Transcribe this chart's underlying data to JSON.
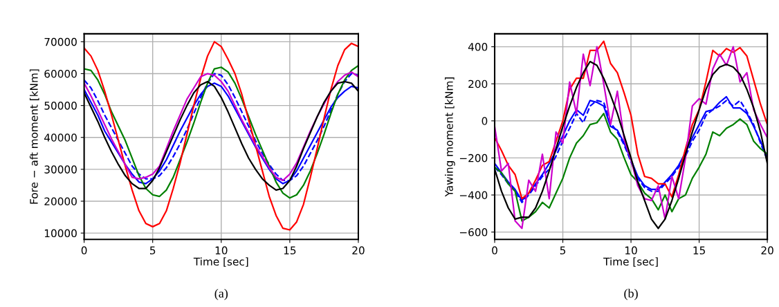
{
  "chart_data": [
    {
      "type": "line",
      "xlabel": "Time [sec]",
      "ylabel": "Fore − aft moment [kNm]",
      "annotations": [
        "(a)"
      ],
      "x": [
        0,
        0.5,
        1,
        1.5,
        2,
        2.5,
        3,
        3.5,
        4,
        4.5,
        5,
        5.5,
        6,
        6.5,
        7,
        7.5,
        8,
        8.5,
        9,
        9.5,
        10,
        10.5,
        11,
        11.5,
        12,
        12.5,
        13,
        13.5,
        14,
        14.5,
        15,
        15.5,
        16,
        16.5,
        17,
        17.5,
        18,
        18.5,
        19,
        19.5,
        20
      ],
      "xlim": [
        0,
        20
      ],
      "xticks": [
        0,
        5,
        10,
        15,
        20
      ],
      "ylim": [
        8000,
        72500
      ],
      "yticks": [
        10000,
        20000,
        30000,
        40000,
        50000,
        60000,
        70000
      ],
      "grid": true,
      "series": [
        {
          "color": "#0000ff",
          "line_style": "solid",
          "values": [
            55000,
            51000,
            47000,
            42000,
            38500,
            35000,
            31500,
            28500,
            26000,
            25500,
            27000,
            29500,
            33000,
            37500,
            42000,
            46000,
            50000,
            53500,
            56000,
            57000,
            56000,
            53000,
            49000,
            45000,
            41000,
            37000,
            33500,
            30000,
            27000,
            25500,
            26500,
            29500,
            33500,
            37500,
            41500,
            45500,
            49500,
            52500,
            54500,
            56000,
            55500
          ]
        },
        {
          "color": "#0000ff",
          "line_style": "dashed",
          "values": [
            58000,
            55500,
            51500,
            47000,
            43000,
            39000,
            35000,
            31000,
            28500,
            27000,
            27000,
            28000,
            30500,
            34000,
            38000,
            42500,
            47500,
            52500,
            57000,
            60000,
            59500,
            56500,
            52500,
            48000,
            43500,
            39000,
            35000,
            31500,
            28500,
            26500,
            26500,
            28000,
            31000,
            35000,
            39000,
            43500,
            48500,
            53500,
            57500,
            60000,
            59500
          ]
        },
        {
          "color": "#008000",
          "line_style": "solid",
          "values": [
            61500,
            61000,
            58000,
            53500,
            48000,
            43500,
            39000,
            33500,
            28000,
            24000,
            22000,
            21500,
            23500,
            27500,
            33000,
            38500,
            44500,
            51000,
            57000,
            61500,
            62000,
            60500,
            57000,
            52000,
            46500,
            41000,
            36000,
            31000,
            26000,
            22500,
            21000,
            22000,
            25000,
            29500,
            35000,
            41000,
            47500,
            53500,
            58000,
            61000,
            62500
          ]
        },
        {
          "color": "#ff0000",
          "line_style": "solid",
          "values": [
            68000,
            65500,
            61000,
            54500,
            47000,
            39000,
            31000,
            23500,
            17000,
            13000,
            12000,
            13000,
            17000,
            24000,
            32000,
            41000,
            50000,
            58500,
            65500,
            70000,
            68500,
            64500,
            60000,
            53500,
            45500,
            37500,
            29500,
            21500,
            15500,
            11500,
            11000,
            13500,
            19000,
            27500,
            36500,
            46000,
            55000,
            62500,
            67500,
            69500,
            68500
          ]
        },
        {
          "color": "#cc00cc",
          "line_style": "solid",
          "values": [
            57000,
            53000,
            48500,
            44000,
            39500,
            35500,
            31500,
            27500,
            27000,
            27500,
            28500,
            31000,
            36500,
            42000,
            47000,
            52000,
            55500,
            59000,
            60000,
            59500,
            57500,
            54500,
            50000,
            45500,
            41500,
            37500,
            34000,
            30500,
            27500,
            26500,
            28500,
            32000,
            37000,
            42000,
            46500,
            50500,
            54500,
            57500,
            59500,
            60500,
            59000
          ]
        },
        {
          "color": "#000000",
          "line_style": "solid",
          "values": [
            54000,
            49500,
            45000,
            40000,
            35500,
            31500,
            28000,
            25500,
            24000,
            24000,
            26500,
            30500,
            35500,
            40500,
            45500,
            50000,
            54000,
            56500,
            57500,
            56000,
            52500,
            48000,
            43000,
            38000,
            33500,
            30000,
            27000,
            25000,
            23500,
            24000,
            26500,
            31000,
            36500,
            41500,
            46500,
            51000,
            54500,
            57000,
            57500,
            57000,
            54500
          ]
        }
      ]
    },
    {
      "type": "line",
      "xlabel": "Time [sec]",
      "ylabel": "Yawing moment [kNm]",
      "annotations": [
        "(b)"
      ],
      "x": [
        0,
        0.5,
        1,
        1.5,
        2,
        2.5,
        3,
        3.5,
        4,
        4.5,
        5,
        5.5,
        6,
        6.5,
        7,
        7.5,
        8,
        8.5,
        9,
        9.5,
        10,
        10.5,
        11,
        11.5,
        12,
        12.5,
        13,
        13.5,
        14,
        14.5,
        15,
        15.5,
        16,
        16.5,
        17,
        17.5,
        18,
        18.5,
        19,
        19.5,
        20
      ],
      "xlim": [
        0,
        20
      ],
      "xticks": [
        0,
        5,
        10,
        15,
        20
      ],
      "ylim": [
        -640,
        470
      ],
      "yticks": [
        {
          "value": -600,
          "label": "−600"
        },
        {
          "value": -400,
          "label": "−400"
        },
        {
          "value": -200,
          "label": "−200"
        },
        0,
        200,
        400
      ],
      "grid": true,
      "series": [
        {
          "color": "#0000ff",
          "line_style": "solid",
          "values": [
            -230,
            -280,
            -330,
            -370,
            -430,
            -390,
            -340,
            -290,
            -230,
            -160,
            -80,
            0,
            60,
            30,
            110,
            100,
            80,
            -30,
            -50,
            -120,
            -210,
            -300,
            -350,
            -370,
            -370,
            -330,
            -290,
            -240,
            -170,
            -90,
            -20,
            50,
            60,
            100,
            130,
            70,
            70,
            40,
            -30,
            -110,
            -200
          ]
        },
        {
          "color": "#0000ff",
          "line_style": "dashed",
          "values": [
            -250,
            -290,
            -340,
            -380,
            -440,
            -400,
            -350,
            -300,
            -260,
            -190,
            -110,
            -40,
            40,
            -10,
            80,
            110,
            100,
            -10,
            -60,
            -130,
            -220,
            -310,
            -360,
            -380,
            -380,
            -340,
            -300,
            -250,
            -190,
            -110,
            -50,
            30,
            60,
            80,
            110,
            80,
            110,
            50,
            -20,
            -120,
            -210
          ]
        },
        {
          "color": "#008000",
          "line_style": "solid",
          "values": [
            -250,
            -280,
            -340,
            -380,
            -540,
            -520,
            -490,
            -440,
            -470,
            -390,
            -310,
            -200,
            -120,
            -80,
            -20,
            -10,
            40,
            -60,
            -100,
            -200,
            -290,
            -330,
            -390,
            -420,
            -480,
            -400,
            -490,
            -420,
            -400,
            -310,
            -250,
            -180,
            -60,
            -80,
            -40,
            -20,
            10,
            -20,
            -110,
            -150,
            -180
          ]
        },
        {
          "color": "#ff0000",
          "line_style": "solid",
          "values": [
            -90,
            -160,
            -240,
            -290,
            -420,
            -390,
            -320,
            -240,
            -220,
            -110,
            0,
            170,
            230,
            230,
            380,
            380,
            430,
            310,
            260,
            150,
            30,
            -180,
            -300,
            -310,
            -340,
            -340,
            -410,
            -290,
            -150,
            -20,
            60,
            210,
            380,
            350,
            390,
            370,
            395,
            350,
            220,
            90,
            -20
          ]
        },
        {
          "color": "#cc00cc",
          "line_style": "solid",
          "values": [
            -30,
            -270,
            -230,
            -540,
            -580,
            -320,
            -380,
            -180,
            -420,
            -60,
            -120,
            210,
            40,
            360,
            190,
            400,
            200,
            -20,
            160,
            -100,
            -210,
            -350,
            -420,
            -430,
            -350,
            -530,
            -300,
            -420,
            -200,
            80,
            120,
            90,
            280,
            360,
            300,
            400,
            210,
            260,
            60,
            -20,
            -90
          ]
        },
        {
          "color": "#000000",
          "line_style": "solid",
          "values": [
            -260,
            -380,
            -470,
            -530,
            -520,
            -520,
            -470,
            -380,
            -270,
            -150,
            -30,
            80,
            180,
            260,
            320,
            300,
            230,
            140,
            40,
            -80,
            -200,
            -330,
            -430,
            -530,
            -580,
            -530,
            -430,
            -310,
            -180,
            -60,
            60,
            170,
            250,
            290,
            305,
            290,
            250,
            170,
            70,
            -60,
            -230
          ]
        }
      ]
    }
  ]
}
